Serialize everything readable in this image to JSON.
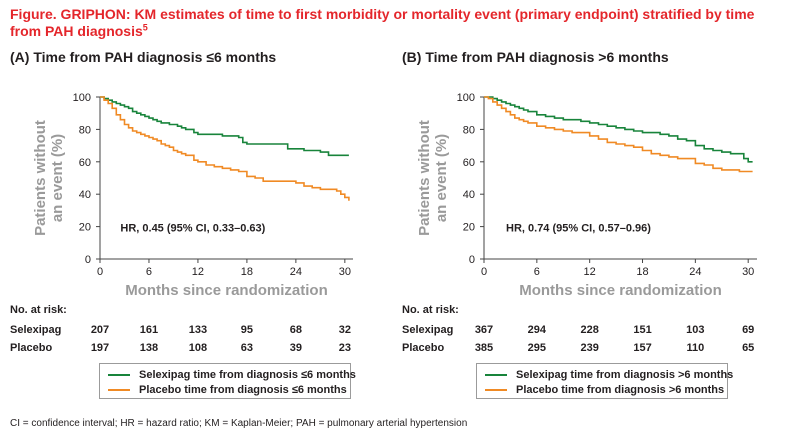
{
  "figure": {
    "title": "Figure. GRIPHON: KM estimates of time to first morbidity or mortality event (primary endpoint) stratified by time from PAH diagnosis",
    "title_superscript": "5",
    "footnote": "CI = confidence interval; HR = hazard ratio; KM = Kaplan-Meier; PAH = pulmonary arterial hypertension"
  },
  "colors": {
    "selexipag": "#18843b",
    "placebo": "#f08a24",
    "title": "#e4262b",
    "axis": "#444444"
  },
  "chart_data": [
    {
      "type": "line",
      "panel_title": "(A) Time from PAH diagnosis ≤6 months",
      "xlabel": "Months since randomization",
      "ylabel_line1": "Patients without",
      "ylabel_line2": "an event (%)",
      "xlim": [
        0,
        31
      ],
      "ylim": [
        0,
        100
      ],
      "xticks": [
        0,
        6,
        12,
        18,
        24,
        30
      ],
      "yticks": [
        0,
        20,
        40,
        60,
        80,
        100
      ],
      "annotation": "HR, 0.45 (95% CI, 0.33–0.63)",
      "series": [
        {
          "name": "Selexipag time from diagnosis ≤6 months",
          "color": "#18843b",
          "x": [
            0,
            0.5,
            1,
            1.5,
            2,
            2.5,
            3,
            3.5,
            4,
            4.5,
            5,
            5.5,
            6,
            6.5,
            7,
            7.5,
            8,
            8.5,
            9,
            9.5,
            10,
            10.5,
            11,
            11.5,
            12,
            13,
            14,
            15,
            16,
            17,
            17.5,
            18,
            19,
            20,
            21,
            22,
            23,
            24,
            25,
            26,
            27,
            28,
            29,
            30,
            30.5
          ],
          "y": [
            100,
            99,
            98,
            97,
            96,
            95,
            94,
            93,
            91,
            90,
            89,
            88,
            87,
            86,
            85,
            84,
            84,
            83,
            83,
            82,
            81,
            80,
            80,
            78,
            77,
            77,
            77,
            76,
            76,
            75,
            72,
            71,
            71,
            71,
            71,
            71,
            68,
            68,
            67,
            67,
            66,
            64,
            64,
            64,
            64
          ]
        },
        {
          "name": "Placebo time from diagnosis ≤6 months",
          "color": "#f08a24",
          "x": [
            0,
            0.5,
            1,
            1.5,
            2,
            2.5,
            3,
            3.5,
            4,
            4.5,
            5,
            5.5,
            6,
            6.5,
            7,
            7.5,
            8,
            8.5,
            9,
            9.5,
            10,
            10.5,
            11,
            11.5,
            12,
            13,
            14,
            15,
            16,
            17,
            18,
            19,
            20,
            21,
            22,
            23,
            24,
            25,
            26,
            27,
            28,
            29,
            29.5,
            30,
            30.5
          ],
          "y": [
            100,
            98,
            96,
            93,
            89,
            86,
            83,
            81,
            79,
            78,
            77,
            76,
            75,
            74,
            73,
            71,
            70,
            69,
            67,
            66,
            65,
            64,
            64,
            61,
            60,
            58,
            57,
            56,
            55,
            54,
            51,
            50,
            48,
            48,
            48,
            48,
            47,
            45,
            44,
            43,
            43,
            42,
            40,
            38,
            36
          ]
        }
      ],
      "risk_table": {
        "header": "No. at risk:",
        "times": [
          0,
          6,
          12,
          18,
          24,
          30
        ],
        "rows": [
          {
            "label": "Selexipag",
            "values": [
              207,
              161,
              133,
              95,
              68,
              32
            ]
          },
          {
            "label": "Placebo",
            "values": [
              197,
              138,
              108,
              63,
              39,
              23
            ]
          }
        ]
      }
    },
    {
      "type": "line",
      "panel_title": "(B) Time from PAH diagnosis >6 months",
      "xlabel": "Months since randomization",
      "ylabel_line1": "Patients without",
      "ylabel_line2": "an event (%)",
      "xlim": [
        0,
        31
      ],
      "ylim": [
        0,
        100
      ],
      "xticks": [
        0,
        6,
        12,
        18,
        24,
        30
      ],
      "yticks": [
        0,
        20,
        40,
        60,
        80,
        100
      ],
      "annotation": "HR, 0.74 (95% CI, 0.57–0.96)",
      "series": [
        {
          "name": "Selexipag time from diagnosis >6 months",
          "color": "#18843b",
          "x": [
            0,
            0.5,
            1,
            1.5,
            2,
            2.5,
            3,
            3.5,
            4,
            4.5,
            5,
            6,
            7,
            8,
            9,
            10,
            11,
            12,
            13,
            14,
            15,
            16,
            17,
            18,
            19,
            20,
            21,
            22,
            23,
            24,
            25,
            26,
            27,
            28,
            29,
            29.5,
            30,
            30.5
          ],
          "y": [
            100,
            100,
            99,
            98,
            97,
            96,
            95,
            94,
            93,
            92,
            91,
            89,
            88,
            87,
            86,
            86,
            85,
            84,
            83,
            82,
            81,
            80,
            79,
            78,
            78,
            77,
            76,
            74,
            73,
            70,
            68,
            67,
            66,
            65,
            65,
            62,
            60,
            60
          ]
        },
        {
          "name": "Placebo time from diagnosis >6 months",
          "color": "#f08a24",
          "x": [
            0,
            0.5,
            1,
            1.5,
            2,
            2.5,
            3,
            3.5,
            4,
            4.5,
            5,
            6,
            7,
            8,
            9,
            10,
            11,
            12,
            13,
            14,
            15,
            16,
            17,
            18,
            19,
            20,
            21,
            22,
            23,
            24,
            25,
            26,
            27,
            28,
            29,
            30,
            30.5
          ],
          "y": [
            100,
            99,
            97,
            95,
            93,
            91,
            89,
            87,
            86,
            85,
            84,
            82,
            81,
            80,
            79,
            78,
            78,
            76,
            74,
            72,
            71,
            70,
            69,
            67,
            65,
            64,
            63,
            62,
            62,
            59,
            58,
            56,
            55,
            55,
            54,
            54,
            54
          ]
        }
      ],
      "risk_table": {
        "header": "No. at risk:",
        "times": [
          0,
          6,
          12,
          18,
          24,
          30
        ],
        "rows": [
          {
            "label": "Selexipag",
            "values": [
              367,
              294,
              228,
              151,
              103,
              69
            ]
          },
          {
            "label": "Placebo",
            "values": [
              385,
              295,
              239,
              157,
              110,
              65
            ]
          }
        ]
      }
    }
  ]
}
